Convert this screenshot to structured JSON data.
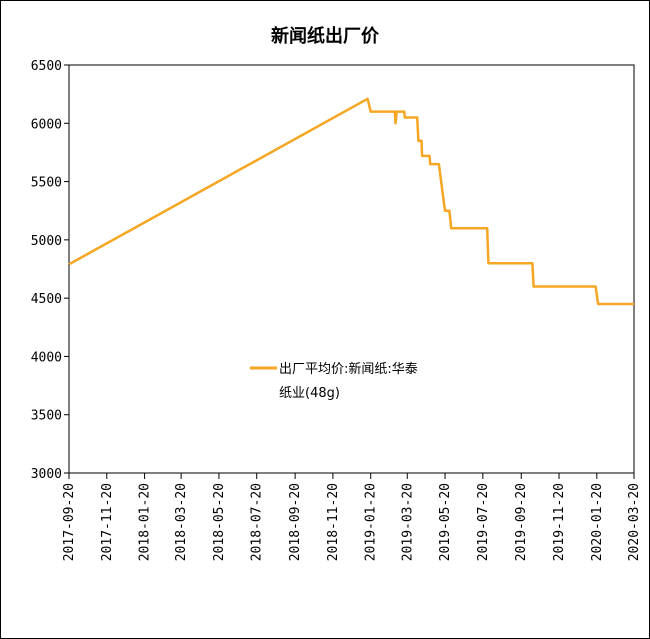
{
  "chart_data": {
    "type": "line",
    "title": "新闻纸出厂价",
    "xlabel": "",
    "ylabel": "",
    "ylim": [
      3000,
      6500
    ],
    "yticks": [
      3000,
      3500,
      4000,
      4500,
      5000,
      5500,
      6000,
      6500
    ],
    "xticks": [
      "2017-09-20",
      "2017-11-20",
      "2018-01-20",
      "2018-03-20",
      "2018-05-20",
      "2018-07-20",
      "2018-09-20",
      "2018-11-20",
      "2019-01-20",
      "2019-03-20",
      "2019-05-20",
      "2019-07-20",
      "2019-09-20",
      "2019-11-20",
      "2020-01-20",
      "2020-03-20"
    ],
    "grid": false,
    "legend_position": "center",
    "series_color": "#F5A623",
    "series": [
      {
        "name": "出厂平均价:新闻纸:华泰纸业(48g)",
        "points": [
          [
            "2017-09-20",
            4790
          ],
          [
            "2019-01-15",
            6210
          ],
          [
            "2019-01-20",
            6100
          ],
          [
            "2019-02-28",
            6100
          ],
          [
            "2019-03-01",
            6000
          ],
          [
            "2019-03-03",
            6100
          ],
          [
            "2019-03-15",
            6100
          ],
          [
            "2019-03-16",
            6050
          ],
          [
            "2019-04-05",
            6050
          ],
          [
            "2019-04-07",
            5850
          ],
          [
            "2019-04-12",
            5850
          ],
          [
            "2019-04-13",
            5720
          ],
          [
            "2019-04-25",
            5720
          ],
          [
            "2019-04-26",
            5650
          ],
          [
            "2019-05-10",
            5650
          ],
          [
            "2019-05-15",
            5450
          ],
          [
            "2019-05-20",
            5250
          ],
          [
            "2019-05-27",
            5250
          ],
          [
            "2019-05-30",
            5100
          ],
          [
            "2019-07-27",
            5100
          ],
          [
            "2019-07-29",
            4800
          ],
          [
            "2019-10-08",
            4800
          ],
          [
            "2019-10-10",
            4600
          ],
          [
            "2020-01-18",
            4600
          ],
          [
            "2020-01-22",
            4450
          ],
          [
            "2020-03-20",
            4450
          ]
        ]
      }
    ],
    "legend": {
      "line1": "出厂平均价:新闻纸:华泰",
      "line2": "纸业(48g)"
    }
  }
}
